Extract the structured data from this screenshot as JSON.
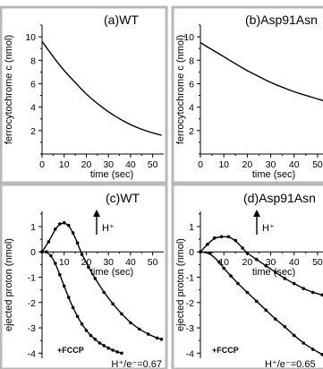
{
  "chart_data": [
    {
      "type": "line",
      "panel_label": "(a)WT",
      "xlabel": "time (sec)",
      "ylabel": "ferrocytochrome c (nmol)",
      "xlim": [
        0,
        55
      ],
      "ylim": [
        0,
        11
      ],
      "xticks": [
        0,
        10,
        20,
        30,
        40,
        50
      ],
      "yticks": [
        2,
        4,
        6,
        8,
        10
      ],
      "series": [
        {
          "x": [
            0,
            5,
            10,
            15,
            20,
            25,
            30,
            35,
            40,
            45,
            50,
            54
          ],
          "values": [
            9.6,
            8.3,
            7.1,
            6.1,
            5.1,
            4.3,
            3.6,
            3.0,
            2.5,
            2.1,
            1.8,
            1.6
          ]
        }
      ]
    },
    {
      "type": "line",
      "panel_label": "(b)Asp91Asn",
      "xlabel": "time (sec)",
      "ylabel": "ferrocytochrome c (nmol)",
      "xlim": [
        0,
        55
      ],
      "ylim": [
        0,
        11
      ],
      "xticks": [
        0,
        10,
        20,
        30,
        40,
        50
      ],
      "yticks": [
        2,
        4,
        6,
        8,
        10
      ],
      "series": [
        {
          "x": [
            0,
            5,
            10,
            15,
            20,
            25,
            30,
            35,
            40,
            45,
            50,
            55
          ],
          "values": [
            9.5,
            8.9,
            8.3,
            7.7,
            7.1,
            6.6,
            6.1,
            5.7,
            5.3,
            5.0,
            4.7,
            4.4
          ]
        }
      ]
    },
    {
      "type": "line",
      "panel_label": "(c)WT",
      "xlabel": "time (sec)",
      "ylabel": "ejected proton (nmol)",
      "xlim": [
        0,
        55
      ],
      "ylim": [
        -4.2,
        1.6
      ],
      "xticks": [
        0,
        10,
        20,
        30,
        40,
        50
      ],
      "yticks": [
        1,
        0,
        -1,
        -2,
        -3,
        -4
      ],
      "annotations": {
        "arrow_label": "H⁺",
        "fccp": "+FCCP",
        "ratio": "H⁺/e⁻=0.67"
      },
      "series": [
        {
          "x": [
            0,
            3,
            6,
            8,
            10,
            12,
            14,
            16,
            18,
            21,
            24,
            28,
            32,
            36,
            40,
            44,
            48,
            52,
            54
          ],
          "values": [
            0,
            0.4,
            0.9,
            1.1,
            1.15,
            1.05,
            0.75,
            0.35,
            -0.1,
            -0.6,
            -1.05,
            -1.6,
            -2.05,
            -2.45,
            -2.8,
            -3.05,
            -3.25,
            -3.4,
            -3.45
          ]
        },
        {
          "x": [
            0,
            2,
            4,
            6,
            8,
            10,
            12,
            14,
            16,
            18,
            20,
            22,
            24,
            26,
            28,
            30,
            32,
            34,
            36
          ],
          "values": [
            0,
            0,
            -0.15,
            -0.45,
            -0.9,
            -1.35,
            -1.8,
            -2.2,
            -2.55,
            -2.85,
            -3.1,
            -3.3,
            -3.45,
            -3.6,
            -3.7,
            -3.8,
            -3.88,
            -3.95,
            -4.0
          ]
        }
      ]
    },
    {
      "type": "line",
      "panel_label": "(d)Asp91Asn",
      "xlabel": "time (sec)",
      "ylabel": "ejected proton (nmol)",
      "xlim": [
        0,
        55
      ],
      "ylim": [
        -4.2,
        1.6
      ],
      "xticks": [
        0,
        10,
        20,
        30,
        40,
        50
      ],
      "yticks": [
        1,
        0,
        -1,
        -2,
        -3,
        -4
      ],
      "annotations": {
        "arrow_label": "H⁺",
        "fccp": "+FCCP",
        "ratio": "H⁺/e⁻=0.65"
      },
      "series": [
        {
          "x": [
            0,
            3,
            6,
            9,
            12,
            15,
            18,
            20,
            24,
            28,
            32,
            36,
            40,
            44,
            48,
            52,
            55
          ],
          "values": [
            0,
            0.3,
            0.55,
            0.6,
            0.6,
            0.45,
            0.15,
            -0.05,
            -0.3,
            -0.55,
            -0.8,
            -1.05,
            -1.25,
            -1.45,
            -1.6,
            -1.7,
            -1.75
          ]
        },
        {
          "x": [
            0,
            4,
            8,
            10,
            13,
            16,
            20,
            24,
            28,
            32,
            36,
            40,
            44,
            48,
            52,
            55
          ],
          "values": [
            0,
            -0.05,
            -0.4,
            -0.65,
            -0.95,
            -1.25,
            -1.6,
            -1.95,
            -2.3,
            -2.65,
            -2.95,
            -3.3,
            -3.6,
            -3.85,
            -4.05,
            -4.2
          ]
        }
      ]
    }
  ]
}
